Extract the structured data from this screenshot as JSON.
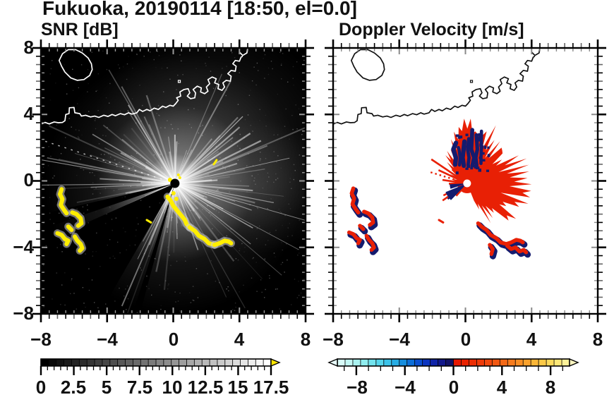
{
  "title": "Fukuoka, 20190114 [18:50, el=0.0]",
  "panels": {
    "left": {
      "subtitle": "SNR [dB]",
      "xtick_labels": [
        "−8",
        "−4",
        "0",
        "4",
        "8"
      ],
      "ytick_labels": [
        "8",
        "4",
        "0",
        "−4",
        "−8"
      ]
    },
    "right": {
      "subtitle": "Doppler Velocity [m/s]",
      "xtick_labels": [
        "−8",
        "−4",
        "0",
        "4",
        "8"
      ]
    }
  },
  "colorbars": {
    "snr": {
      "tick_labels": [
        "0",
        "2.5",
        "5",
        "7.5",
        "10",
        "12.5",
        "15",
        "17.5"
      ]
    },
    "velocity": {
      "tick_labels": [
        "−8",
        "−4",
        "0",
        "4",
        "8"
      ]
    }
  },
  "colors": {
    "panel_left_bg": "#000000",
    "panel_right_bg": "#ffffff",
    "coast_left": "#ffffff",
    "coast_right": "#111111",
    "snr_high": "#ffee00",
    "snr_overflow_arrow": "#ffe600",
    "vel_positive": "#e82005",
    "vel_negative": "#141b6e"
  },
  "chart_data": [
    {
      "type": "heatmap",
      "title": "SNR [dB]",
      "xlim": [
        -8,
        8
      ],
      "ylim": [
        -8,
        8
      ],
      "xticks": [
        -8,
        -4,
        0,
        4,
        8
      ],
      "yticks": [
        -8,
        -4,
        0,
        4,
        8
      ],
      "minor_tick_step": 0.5,
      "colorbar": {
        "range": [
          0,
          17.5
        ],
        "ticks": [
          0,
          2.5,
          5,
          7.5,
          10,
          12.5,
          15,
          17.5
        ],
        "minor_step": 0.5,
        "n_segments": 30,
        "colormap": "linear black to white, yellow overflow arrow for > 17.5 dB"
      },
      "features": {
        "radar_site": {
          "x": 0.1,
          "y": -0.15
        },
        "description": "black background, white radial beams fanning out from radar site, dark shadow wedge toward SW, white coastline of Hakata Bay",
        "high_snr_arc": [
          [
            -0.35,
            -0.95
          ],
          [
            -0.15,
            -1.2
          ],
          [
            0.0,
            -1.5
          ],
          [
            0.25,
            -1.8
          ],
          [
            0.5,
            -2.1
          ],
          [
            0.7,
            -2.35
          ],
          [
            0.8,
            -2.6
          ],
          [
            1.0,
            -2.8
          ],
          [
            1.3,
            -3.0
          ],
          [
            1.55,
            -3.3
          ],
          [
            1.9,
            -3.5
          ],
          [
            2.15,
            -3.75
          ],
          [
            2.5,
            -3.85
          ],
          [
            2.8,
            -3.75
          ],
          [
            3.1,
            -3.6
          ],
          [
            3.35,
            -3.65
          ],
          [
            3.5,
            -3.75
          ]
        ],
        "wake_patches": [
          [
            [
              -6.75,
              -0.5
            ],
            [
              -6.85,
              -0.8
            ],
            [
              -6.7,
              -1.1
            ],
            [
              -6.8,
              -1.45
            ],
            [
              -6.6,
              -1.75
            ],
            [
              -6.45,
              -1.95
            ]
          ],
          [
            [
              -6.1,
              -1.9
            ],
            [
              -5.85,
              -2.0
            ],
            [
              -5.6,
              -2.25
            ],
            [
              -5.55,
              -2.55
            ],
            [
              -5.75,
              -2.7
            ]
          ],
          [
            [
              -6.35,
              -2.75
            ],
            [
              -6.15,
              -2.95
            ]
          ],
          [
            [
              -7.0,
              -3.15
            ],
            [
              -6.75,
              -3.25
            ],
            [
              -6.55,
              -3.5
            ],
            [
              -6.35,
              -3.6
            ],
            [
              -6.45,
              -3.8
            ]
          ],
          [
            [
              -5.95,
              -3.35
            ],
            [
              -5.8,
              -3.6
            ],
            [
              -5.6,
              -3.8
            ],
            [
              -5.5,
              -4.05
            ],
            [
              -5.65,
              -4.2
            ]
          ]
        ],
        "small_echoes": [
          [
            [
              -1.6,
              -2.35
            ],
            [
              -1.35,
              -2.5
            ]
          ],
          [
            [
              2.45,
              1.0
            ],
            [
              2.62,
              1.25
            ]
          ]
        ]
      }
    },
    {
      "type": "heatmap",
      "title": "Doppler Velocity [m/s]",
      "xlim": [
        -8,
        8
      ],
      "ylim": [
        -8,
        8
      ],
      "xticks": [
        -8,
        -4,
        0,
        4,
        8
      ],
      "yticks": [
        -8,
        -4,
        0,
        4,
        8
      ],
      "minor_tick_step": 0.5,
      "colorbar": {
        "range": [
          -9.6,
          9.5
        ],
        "ticks": [
          -8,
          -4,
          0,
          4,
          8
        ],
        "minor_step": 1,
        "n_segments": 30,
        "colors": [
          "#d8fbf8",
          "#c2f7f4",
          "#aaf2f0",
          "#90edef",
          "#72e3ee",
          "#55d5ec",
          "#3cc3e9",
          "#28ade4",
          "#168ede",
          "#0c6ed8",
          "#0a4fd0",
          "#0c35c0",
          "#1024a8",
          "#12188a",
          "#121266",
          "#e71800",
          "#e92200",
          "#ec2d03",
          "#ee3a08",
          "#f0480d",
          "#f25812",
          "#f46917",
          "#f67b1d",
          "#f88e24",
          "#faa22c",
          "#fbb637",
          "#fcc947",
          "#fdda5c",
          "#fee878",
          "#fef29a"
        ],
        "arrow_left_color": "#e8fdfb",
        "arrow_right_color": "#fdf6c0"
      },
      "features": {
        "radar_site": {
          "x": 0.1,
          "y": -0.15
        },
        "description": "white background, jagged fan of receding (+1 to +2 m/s, red) velocities over NE-E-SE sectors, navy (approaching, ~ -8 m/s) vertical streaks above site and wedge SW of site, black coastline",
        "receding_fan": {
          "angle_range_deg": [
            -68,
            192
          ],
          "max_radius": 3.6,
          "color": "#e82005"
        },
        "approaching_streaks_region": {
          "x_range": [
            -0.8,
            1.4
          ],
          "y_range": [
            0.6,
            3.1
          ],
          "color": "#141b6e"
        },
        "echo_arc_red_navy": [
          [
            1.0,
            -2.8
          ],
          [
            1.3,
            -3.0
          ],
          [
            1.55,
            -3.3
          ],
          [
            1.9,
            -3.5
          ],
          [
            2.15,
            -3.75
          ],
          [
            2.5,
            -3.85
          ],
          [
            2.8,
            -3.75
          ],
          [
            3.1,
            -3.6
          ],
          [
            3.35,
            -3.65
          ],
          [
            3.5,
            -3.75
          ]
        ],
        "extra_arcs": [
          [
            [
              1.5,
              -3.9
            ],
            [
              1.68,
              -4.15
            ],
            [
              1.6,
              -4.45
            ]
          ],
          [
            [
              2.55,
              -3.95
            ],
            [
              2.8,
              -4.15
            ],
            [
              3.05,
              -4.05
            ],
            [
              3.3,
              -4.3
            ],
            [
              3.55,
              -4.2
            ],
            [
              3.7,
              -4.35
            ]
          ]
        ]
      }
    }
  ],
  "map": {
    "coastline": [
      [
        -8,
        3.42
      ],
      [
        -7.75,
        3.52
      ],
      [
        -7.5,
        3.43
      ],
      [
        -7.2,
        3.55
      ],
      [
        -6.95,
        3.5
      ],
      [
        -6.7,
        3.52
      ],
      [
        -6.55,
        3.62
      ],
      [
        -6.5,
        4.0
      ],
      [
        -6.3,
        4.05
      ],
      [
        -6.28,
        4.4
      ],
      [
        -6.0,
        4.42
      ],
      [
        -5.95,
        4.1
      ],
      [
        -5.65,
        4.05
      ],
      [
        -5.55,
        3.9
      ],
      [
        -5.3,
        3.95
      ],
      [
        -5.0,
        3.85
      ],
      [
        -4.75,
        3.9
      ],
      [
        -4.5,
        3.82
      ],
      [
        -4.2,
        3.95
      ],
      [
        -3.95,
        3.88
      ],
      [
        -3.7,
        4.0
      ],
      [
        -3.5,
        3.92
      ],
      [
        -3.2,
        4.05
      ],
      [
        -2.95,
        3.98
      ],
      [
        -2.7,
        4.1
      ],
      [
        -2.5,
        4.02
      ],
      [
        -2.2,
        4.1
      ],
      [
        -2.05,
        4.3
      ],
      [
        -1.85,
        4.18
      ],
      [
        -1.6,
        4.3
      ],
      [
        -1.4,
        4.22
      ],
      [
        -1.15,
        4.38
      ],
      [
        -0.9,
        4.3
      ],
      [
        -0.65,
        4.5
      ],
      [
        -0.45,
        4.42
      ],
      [
        -0.2,
        4.55
      ],
      [
        0.0,
        4.5
      ],
      [
        0.15,
        4.65
      ],
      [
        0.3,
        4.85
      ],
      [
        0.2,
        5.0
      ],
      [
        0.45,
        5.1
      ],
      [
        0.4,
        5.35
      ],
      [
        0.65,
        5.5
      ],
      [
        0.9,
        5.55
      ],
      [
        1.0,
        5.3
      ],
      [
        0.85,
        5.1
      ],
      [
        1.05,
        4.95
      ],
      [
        1.3,
        5.0
      ],
      [
        1.35,
        5.3
      ],
      [
        1.2,
        5.5
      ],
      [
        1.45,
        5.7
      ],
      [
        1.7,
        5.6
      ],
      [
        1.65,
        5.35
      ],
      [
        1.9,
        5.25
      ],
      [
        2.1,
        5.4
      ],
      [
        2.0,
        5.65
      ],
      [
        2.2,
        5.85
      ],
      [
        2.1,
        6.1
      ],
      [
        2.35,
        6.25
      ],
      [
        2.6,
        6.15
      ],
      [
        2.5,
        5.9
      ],
      [
        2.75,
        5.8
      ],
      [
        2.7,
        5.55
      ],
      [
        2.95,
        5.45
      ],
      [
        3.1,
        5.65
      ],
      [
        3.0,
        5.9
      ],
      [
        3.2,
        6.05
      ],
      [
        3.45,
        6.0
      ],
      [
        3.5,
        6.3
      ],
      [
        3.3,
        6.45
      ],
      [
        3.5,
        6.65
      ],
      [
        3.75,
        6.6
      ],
      [
        3.8,
        6.9
      ],
      [
        3.6,
        7.05
      ],
      [
        3.75,
        7.25
      ],
      [
        4.0,
        7.2
      ],
      [
        4.1,
        7.45
      ],
      [
        4.2,
        7.5
      ]
    ],
    "port_piece": [
      [
        4.0,
        7.75
      ],
      [
        4.2,
        7.55
      ],
      [
        4.45,
        7.7
      ],
      [
        4.5,
        8.0
      ]
    ],
    "island": [
      [
        -6.35,
        7.9
      ],
      [
        -6.7,
        7.65
      ],
      [
        -6.9,
        7.25
      ],
      [
        -6.75,
        6.9
      ],
      [
        -6.55,
        6.55
      ],
      [
        -6.2,
        6.2
      ],
      [
        -5.8,
        6.05
      ],
      [
        -5.4,
        6.1
      ],
      [
        -5.05,
        6.35
      ],
      [
        -4.9,
        6.7
      ],
      [
        -4.95,
        7.05
      ],
      [
        -5.15,
        7.4
      ],
      [
        -5.5,
        7.7
      ],
      [
        -5.9,
        7.9
      ]
    ],
    "islet": [
      0.3,
      6.05
    ]
  }
}
